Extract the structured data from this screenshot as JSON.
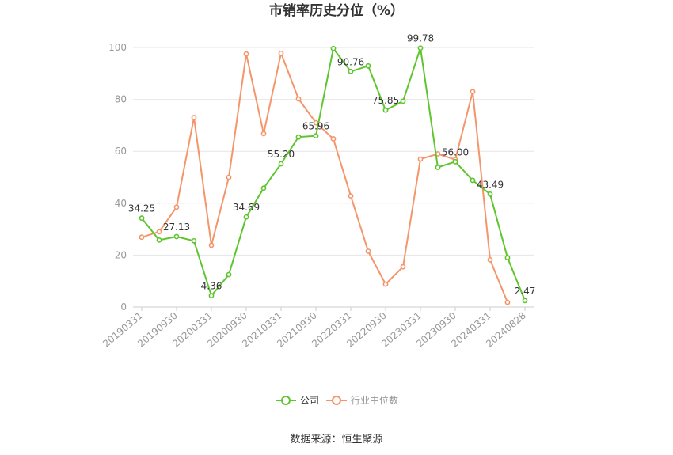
{
  "chart_data": {
    "type": "line",
    "title": "市销率历史分位（%）",
    "xlabel": "",
    "ylabel": "",
    "ylim": [
      0,
      100
    ],
    "yticks": [
      0,
      20,
      40,
      60,
      80,
      100
    ],
    "grid": true,
    "legend_position": "bottom",
    "x": [
      "20190331",
      "20190630",
      "20190930",
      "20191231",
      "20200331",
      "20200630",
      "20200930",
      "20201231",
      "20210331",
      "20210630",
      "20210930",
      "20211231",
      "20220331",
      "20220630",
      "20220930",
      "20221231",
      "20230331",
      "20230630",
      "20230930",
      "20231231",
      "20240331",
      "20240630",
      "20240828"
    ],
    "xtick_labels": [
      "20190331",
      "20190930",
      "20200331",
      "20200930",
      "20210331",
      "20210930",
      "20220331",
      "20220930",
      "20230331",
      "20230930",
      "20240331",
      "20240828"
    ],
    "series": [
      {
        "name": "公司",
        "color": "#5ec52e",
        "values": [
          34.25,
          25.8,
          27.13,
          25.5,
          4.36,
          12.5,
          34.69,
          45.8,
          55.2,
          65.5,
          65.96,
          99.6,
          90.76,
          92.9,
          75.85,
          79.3,
          99.78,
          53.8,
          56.0,
          48.8,
          43.49,
          19.0,
          2.47
        ],
        "labels": {
          "0": "34.25",
          "2": "27.13",
          "4": "4.36",
          "6": "34.69",
          "8": "55.20",
          "10": "65.96",
          "12": "90.76",
          "14": "75.85",
          "16": "99.78",
          "18": "56.00",
          "20": "43.49",
          "22": "2.47"
        }
      },
      {
        "name": "行业中位数",
        "color": "#f4956a",
        "values": [
          26.9,
          29.0,
          38.5,
          73.0,
          23.8,
          50.0,
          97.5,
          66.8,
          97.8,
          80.2,
          71.0,
          64.8,
          42.8,
          21.5,
          8.8,
          15.5,
          57.0,
          59.0,
          56.8,
          83.0,
          18.2,
          1.8,
          null
        ]
      }
    ]
  },
  "legend": {
    "company": "公司",
    "industry": "行业中位数"
  },
  "source": "数据来源：恒生聚源"
}
